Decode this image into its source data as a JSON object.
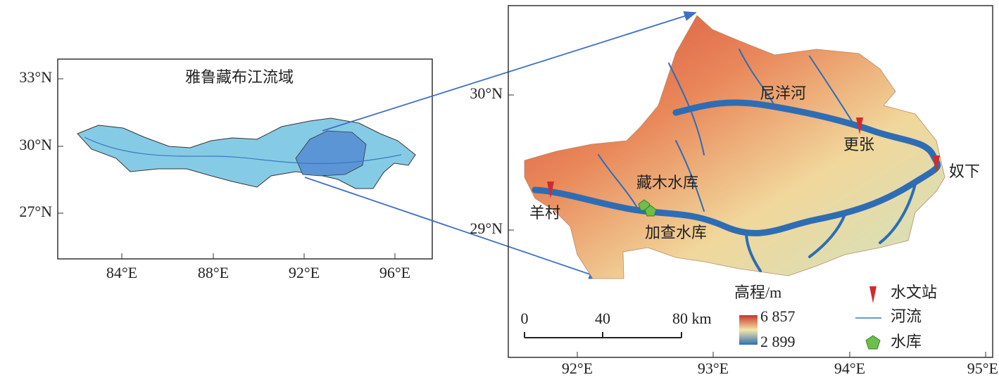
{
  "overview": {
    "title": "雅鲁藏布江流域",
    "lat_labels": [
      "33°N",
      "30°N",
      "27°N"
    ],
    "lon_labels": [
      "84°E",
      "88°E",
      "92°E",
      "96°E"
    ]
  },
  "detail": {
    "lat_labels": [
      "30°N",
      "29°N"
    ],
    "lon_labels": [
      "92°E",
      "93°E",
      "94°E",
      "95°E"
    ],
    "places": [
      "尼洋河",
      "更张",
      "奴下",
      "藏木水库",
      "羊村",
      "加查水库"
    ],
    "scale_bar": [
      "0",
      "40",
      "80 km"
    ],
    "elevation_legend": {
      "title": "高程/m",
      "max": "6 857",
      "min": "2 899"
    },
    "legend": [
      "水文站",
      "河流",
      "水库"
    ]
  }
}
